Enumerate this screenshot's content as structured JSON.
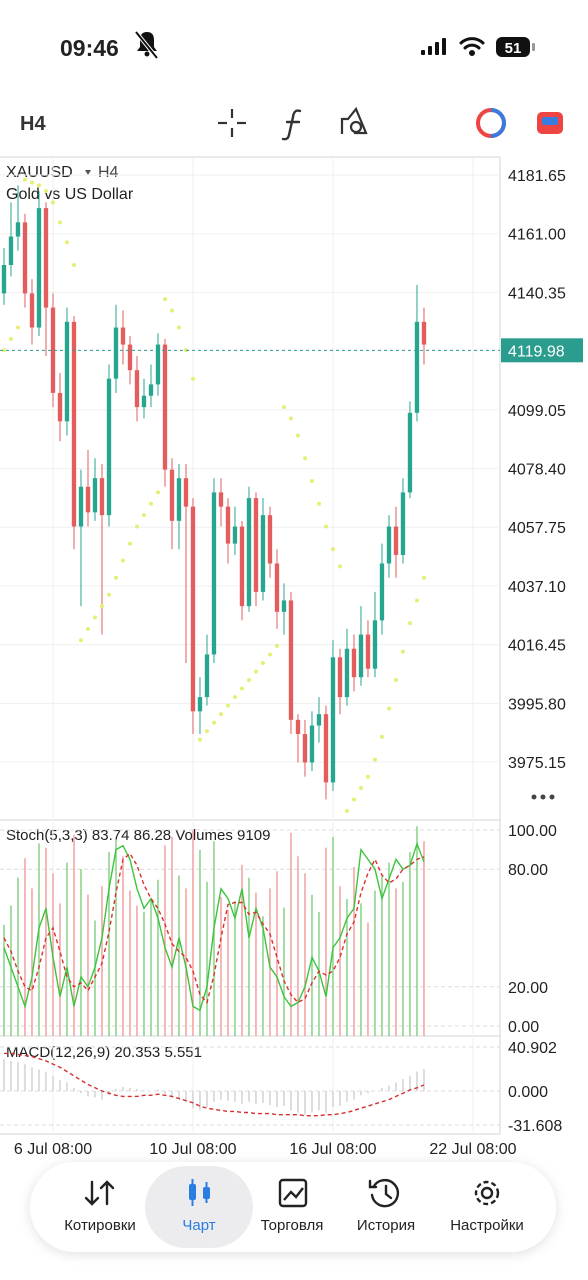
{
  "status_bar": {
    "time": "09:46",
    "battery": "51"
  },
  "toolbar": {
    "timeframe": "H4"
  },
  "chart_data": [
    {
      "type": "candlestick",
      "symbol": "XAUUSD",
      "timeframe": "H4",
      "description": "Gold vs US Dollar",
      "up_color": "#26a58f",
      "down_color": "#e35d5d",
      "open": [
        4140,
        4150,
        4160,
        4165,
        4140,
        4128,
        4170,
        4135,
        4105,
        4095,
        4130,
        4058,
        4072,
        4063,
        4075,
        4062,
        4110,
        4128,
        4122,
        4113,
        4100,
        4104,
        4108,
        4122,
        4078,
        4060,
        4075,
        4065,
        3993,
        3998,
        4013,
        4070,
        4065,
        4052,
        4058,
        4030,
        4068,
        4035,
        4062,
        4045,
        4028,
        4032,
        3990,
        3985,
        3975,
        3988,
        3992,
        3968,
        4012,
        3998,
        4015,
        4005,
        4020,
        4008,
        4025,
        4045,
        4058,
        4048,
        4070,
        4098,
        4130
      ],
      "high": [
        4156,
        4172,
        4178,
        4168,
        4145,
        4176,
        4172,
        4140,
        4112,
        4135,
        4132,
        4078,
        4085,
        4082,
        4080,
        4115,
        4136,
        4134,
        4125,
        4118,
        4110,
        4115,
        4126,
        4124,
        4082,
        4080,
        4080,
        4068,
        4005,
        4020,
        4075,
        4075,
        4068,
        4065,
        4060,
        4072,
        4070,
        4068,
        4065,
        4050,
        4038,
        4035,
        3992,
        3990,
        3993,
        3998,
        3995,
        4018,
        4015,
        4022,
        4020,
        4030,
        4025,
        4035,
        4052,
        4062,
        4065,
        4075,
        4102,
        4143,
        4135
      ],
      "low": [
        4136,
        4146,
        4155,
        4135,
        4122,
        4125,
        4118,
        4100,
        4088,
        4090,
        4050,
        4030,
        4058,
        4060,
        4020,
        4058,
        4105,
        4115,
        4108,
        4095,
        4096,
        4100,
        4104,
        4072,
        4050,
        4050,
        4010,
        3985,
        3985,
        3995,
        4010,
        4058,
        4045,
        4048,
        4025,
        4028,
        4030,
        4032,
        4040,
        4022,
        4020,
        3985,
        3975,
        3970,
        3972,
        3982,
        3962,
        3965,
        3992,
        3995,
        4000,
        4002,
        4005,
        4005,
        4020,
        4040,
        4040,
        4045,
        4068,
        4095,
        4115
      ],
      "close": [
        4150,
        4160,
        4165,
        4140,
        4128,
        4170,
        4135,
        4105,
        4095,
        4130,
        4058,
        4072,
        4063,
        4075,
        4062,
        4110,
        4128,
        4122,
        4113,
        4100,
        4104,
        4108,
        4122,
        4078,
        4060,
        4075,
        4065,
        3993,
        3998,
        4013,
        4070,
        4065,
        4052,
        4058,
        4030,
        4068,
        4035,
        4062,
        4045,
        4028,
        4032,
        3990,
        3985,
        3975,
        3988,
        3992,
        3968,
        4012,
        3998,
        4015,
        4005,
        4020,
        4008,
        4025,
        4045,
        4058,
        4048,
        4070,
        4098,
        4130,
        4122
      ],
      "sar_color": "#e6ee74",
      "sar": [
        4120,
        4124,
        4128,
        4180,
        4179,
        4178,
        4176,
        4172,
        4165,
        4158,
        4150,
        4018,
        4022,
        4026,
        4030,
        4034,
        4040,
        4046,
        4052,
        4058,
        4062,
        4066,
        4070,
        4138,
        4134,
        4128,
        4120,
        4110,
        3983,
        3986,
        3989,
        3992,
        3995,
        3998,
        4001,
        4004,
        4007,
        4010,
        4013,
        4016,
        4100,
        4096,
        4090,
        4082,
        4074,
        4066,
        4058,
        4050,
        4044,
        3958,
        3962,
        3966,
        3970,
        3976,
        3984,
        3994,
        4004,
        4014,
        4024,
        4032,
        4040
      ],
      "current_price": 4119.98,
      "current_color": "#2a9d8f",
      "xlim": [
        -0.57,
        70.86
      ],
      "ylim": [
        3954.77,
        4187.98
      ],
      "yticks": [
        4181.65,
        {
          "value": 4161,
          "label": "4161.00"
        },
        4140.35,
        4099.05,
        {
          "value": 4078.4,
          "label": "4078.40"
        },
        4057.75,
        {
          "value": 4037.1,
          "label": "4037.10"
        },
        4016.45,
        {
          "value": 3995.8,
          "label": "3995.80"
        },
        3975.15
      ],
      "xticks": [
        {
          "value": 7,
          "label": "6 Jul 08:00"
        },
        {
          "value": 27,
          "label": "10 Jul 08:00"
        },
        {
          "value": 47,
          "label": "16 Jul 08:00"
        },
        {
          "value": 67,
          "label": "22 Jul 08:00"
        }
      ],
      "grid": true
    },
    {
      "type": "line",
      "title": "Stoch(5,3,3)",
      "series": [
        {
          "color": "#3cc43c",
          "dashed": false,
          "values": [
            40,
            30,
            20,
            10,
            25,
            50,
            60,
            35,
            15,
            30,
            10,
            25,
            20,
            30,
            45,
            70,
            90,
            92,
            85,
            70,
            60,
            65,
            55,
            40,
            30,
            45,
            30,
            10,
            8,
            20,
            50,
            70,
            65,
            55,
            70,
            45,
            60,
            50,
            30,
            25,
            15,
            10,
            12,
            20,
            35,
            28,
            15,
            40,
            45,
            55,
            60,
            90,
            85,
            80,
            65,
            75,
            85,
            80,
            82,
            93,
            83.74
          ]
        },
        {
          "color": "#d93030",
          "dashed": true,
          "values": [
            45,
            38,
            28,
            20,
            18,
            30,
            45,
            50,
            38,
            25,
            20,
            22,
            18,
            25,
            32,
            48,
            68,
            85,
            88,
            82,
            72,
            65,
            60,
            52,
            42,
            38,
            35,
            28,
            16,
            12,
            26,
            45,
            62,
            63,
            63,
            57,
            58,
            52,
            47,
            35,
            23,
            16,
            12,
            14,
            22,
            28,
            26,
            28,
            35,
            47,
            53,
            68,
            78,
            85,
            77,
            73,
            75,
            80,
            82,
            85,
            86.28
          ]
        }
      ],
      "volumes": {
        "name": "Volumes",
        "values": [
          5200,
          6100,
          7400,
          8300,
          6900,
          9000,
          8800,
          7600,
          6200,
          8100,
          9400,
          7800,
          6600,
          5400,
          7000,
          8600,
          9200,
          8400,
          6800,
          6100,
          5800,
          6400,
          7300,
          8900,
          9300,
          7500,
          6900,
          9600,
          8700,
          7200,
          9100,
          6500,
          5900,
          6300,
          8000,
          7400,
          6700,
          5600,
          6900,
          7700,
          6000,
          9500,
          8400,
          7600,
          6600,
          5800,
          8800,
          9300,
          7000,
          6400,
          7900,
          6200,
          5300,
          6800,
          7500,
          8100,
          6900,
          7200,
          8600,
          9800,
          9109
        ],
        "ylim": [
          0,
          10000
        ]
      },
      "ylim": [
        -5.1,
        104.1
      ],
      "yticks": [
        {
          "value": 100,
          "label": "100.00"
        },
        {
          "value": 80,
          "label": "80.00"
        },
        {
          "value": 20,
          "label": "20.00"
        },
        {
          "value": 0,
          "label": "0.00"
        }
      ]
    },
    {
      "type": "bar",
      "title": "MACD(12,26,9)",
      "color": "#cfcfcf",
      "values": [
        30,
        28,
        27,
        25,
        22,
        20,
        18,
        14,
        10,
        8,
        3,
        -2,
        -5,
        -6,
        -8,
        -4,
        2,
        4,
        3,
        2,
        1,
        0,
        1,
        -3,
        -6,
        -8,
        -10,
        -16,
        -18,
        -15,
        -10,
        -8,
        -9,
        -10,
        -12,
        -10,
        -12,
        -11,
        -13,
        -15,
        -14,
        -18,
        -20,
        -22,
        -20,
        -18,
        -20,
        -15,
        -14,
        -10,
        -8,
        -4,
        -2,
        0,
        3,
        5,
        8,
        11,
        14,
        18,
        20.353
      ],
      "series": [
        {
          "color": "#d32f2f",
          "dashed": true,
          "values": [
            35,
            35,
            34,
            33,
            32,
            30,
            28,
            25,
            22,
            18,
            14,
            10,
            6,
            3,
            0,
            -2,
            -4,
            -5,
            -5,
            -5,
            -4,
            -4,
            -3,
            -4,
            -5,
            -7,
            -9,
            -11,
            -14,
            -16,
            -17,
            -18,
            -19,
            -19,
            -20,
            -20,
            -21,
            -21,
            -21,
            -22,
            -22,
            -22,
            -22,
            -23,
            -23,
            -23,
            -22,
            -22,
            -21,
            -20,
            -18,
            -16,
            -14,
            -12,
            -10,
            -8,
            -5,
            -2,
            1,
            3,
            5.551
          ]
        }
      ],
      "ylim": [
        -39.97,
        49.27
      ],
      "yticks": [
        40.902,
        {
          "value": 0,
          "label": "0.000"
        },
        -31.608
      ]
    }
  ],
  "nav": {
    "items": [
      "Котировки",
      "Чарт",
      "Торговля",
      "История",
      "Настройки"
    ],
    "active": 1
  }
}
